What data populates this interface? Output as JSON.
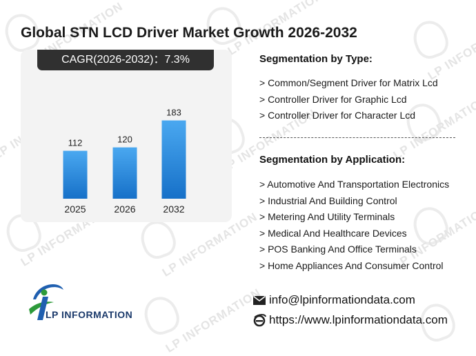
{
  "title": "Global STN LCD Driver Market Growth 2026-2032",
  "cagr_label": "CAGR(2026-2032)：7.3%",
  "chart_data": {
    "type": "bar",
    "categories": [
      "2025",
      "2026",
      "2032"
    ],
    "values": [
      112,
      120,
      183
    ],
    "title": "",
    "xlabel": "",
    "ylabel": "",
    "ylim": [
      0,
      200
    ],
    "grid": false,
    "bar_color_top": "#4aa8f0",
    "bar_color_bottom": "#1670c8"
  },
  "segmentation_type": {
    "heading": "Segmentation by Type:",
    "items": [
      "> Common/Segment Driver for Matrix Lcd",
      "> Controller Driver for Graphic Lcd",
      "> Controller Driver for Character Lcd"
    ]
  },
  "segmentation_application": {
    "heading": "Segmentation by Application:",
    "items": [
      "> Automotive And Transportation Electronics",
      "> Industrial And Building Control",
      "> Metering And Utility Terminals",
      "> Medical And Healthcare Devices",
      "> POS Banking And Office Terminals",
      "> Home Appliances And Consumer Control"
    ]
  },
  "logo": {
    "text": "LP INFORMATION",
    "icon": "lp-information-logo-icon"
  },
  "contact": {
    "email": "info@lpinformationdata.com",
    "email_icon": "email-icon",
    "website": "https://www.lpinformationdata.com",
    "website_icon": "browser-icon"
  },
  "watermark_text": "LP INFORMATION"
}
